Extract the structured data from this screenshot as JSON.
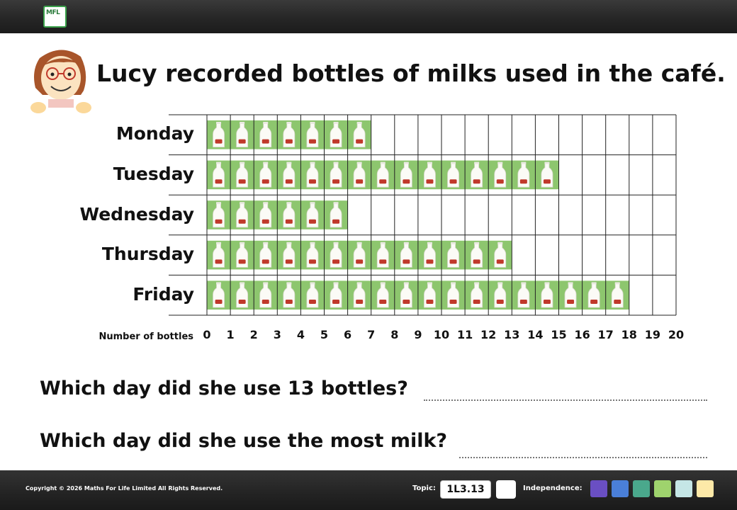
{
  "header": {
    "logo_text": "MFL"
  },
  "title": "Lucy recorded bottles of milks used in the café.",
  "chart_data": {
    "type": "bar",
    "orientation": "horizontal",
    "pictogram": "milk-bottle",
    "categories": [
      "Monday",
      "Tuesday",
      "Wednesday",
      "Thursday",
      "Friday"
    ],
    "values": [
      7,
      15,
      6,
      13,
      18
    ],
    "xlabel": "Number of bottles",
    "xlim": [
      0,
      20
    ],
    "xticks": [
      0,
      1,
      2,
      3,
      4,
      5,
      6,
      7,
      8,
      9,
      10,
      11,
      12,
      13,
      14,
      15,
      16,
      17,
      18,
      19,
      20
    ],
    "grid": true,
    "colors": {
      "bar": "#8dc66e",
      "grid": "#222222"
    }
  },
  "questions": [
    "Which day did she use 13 bottles?",
    "Which day did she use the most milk?"
  ],
  "footer": {
    "copyright": "Copyright © 2026 Maths For Life Limited All Rights Reserved.",
    "topic_label": "Topic:",
    "topic_code": "1L3.13",
    "independence_label": "Independence:",
    "independence_colors": [
      "#6a4fc3",
      "#4a7fd8",
      "#4aa88c",
      "#9fd36d",
      "#c5e6e6",
      "#fde9a8"
    ]
  }
}
